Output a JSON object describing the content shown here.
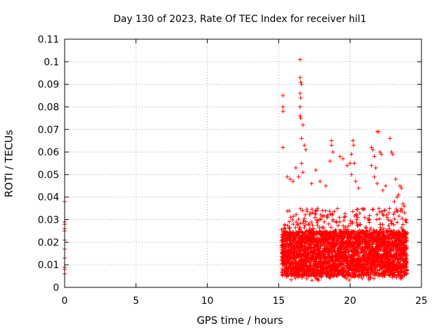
{
  "chart_data": {
    "type": "scatter",
    "title": "Day 130 of 2023, Rate Of TEC Index for receiver hil1",
    "xlabel": "GPS time / hours",
    "ylabel": "ROTI / TECUs",
    "xlim": [
      0,
      25
    ],
    "ylim": [
      0,
      0.11
    ],
    "x_ticks": [
      "0",
      "5",
      "10",
      "15",
      "20",
      "25"
    ],
    "y_ticks": [
      "0",
      "0.01",
      "0.02",
      "0.03",
      "0.04",
      "0.05",
      "0.06",
      "0.07",
      "0.08",
      "0.09",
      "0.1",
      "0.11"
    ],
    "grid": true,
    "marker": "+",
    "color": "#ff0000",
    "series": [
      {
        "points": [
          [
            0.0,
            0.038
          ],
          [
            0.0,
            0.029
          ],
          [
            0.0,
            0.028
          ],
          [
            0.0,
            0.026
          ],
          [
            0.0,
            0.025
          ],
          [
            0.0,
            0.021
          ],
          [
            0.0,
            0.017
          ],
          [
            0.0,
            0.013
          ],
          [
            0.0,
            0.009
          ],
          [
            0.0,
            0.008
          ],
          [
            0.0,
            0.006
          ],
          [
            15.3,
            0.085
          ],
          [
            15.3,
            0.08
          ],
          [
            15.3,
            0.078
          ],
          [
            15.3,
            0.062
          ],
          [
            15.6,
            0.049
          ],
          [
            15.8,
            0.048
          ],
          [
            16.0,
            0.047
          ],
          [
            16.2,
            0.053
          ],
          [
            16.4,
            0.049
          ],
          [
            16.5,
            0.101
          ],
          [
            16.5,
            0.093
          ],
          [
            16.55,
            0.091
          ],
          [
            16.6,
            0.09
          ],
          [
            16.5,
            0.086
          ],
          [
            16.55,
            0.084
          ],
          [
            16.5,
            0.08
          ],
          [
            16.5,
            0.076
          ],
          [
            16.55,
            0.075
          ],
          [
            16.7,
            0.072
          ],
          [
            16.6,
            0.066
          ],
          [
            16.8,
            0.063
          ],
          [
            16.9,
            0.061
          ],
          [
            16.6,
            0.055
          ],
          [
            16.7,
            0.051
          ],
          [
            17.3,
            0.046
          ],
          [
            17.6,
            0.052
          ],
          [
            17.9,
            0.047
          ],
          [
            18.3,
            0.045
          ],
          [
            18.6,
            0.056
          ],
          [
            18.7,
            0.065
          ],
          [
            18.7,
            0.063
          ],
          [
            18.8,
            0.06
          ],
          [
            19.3,
            0.058
          ],
          [
            19.5,
            0.057
          ],
          [
            19.8,
            0.054
          ],
          [
            20.0,
            0.055
          ],
          [
            20.2,
            0.065
          ],
          [
            20.25,
            0.063
          ],
          [
            20.1,
            0.059
          ],
          [
            20.3,
            0.055
          ],
          [
            20.1,
            0.05
          ],
          [
            20.4,
            0.047
          ],
          [
            20.6,
            0.044
          ],
          [
            21.5,
            0.062
          ],
          [
            21.6,
            0.061
          ],
          [
            21.7,
            0.058
          ],
          [
            21.5,
            0.054
          ],
          [
            21.8,
            0.053
          ],
          [
            21.9,
            0.069
          ],
          [
            22.0,
            0.069
          ],
          [
            22.1,
            0.06
          ],
          [
            22.2,
            0.059
          ],
          [
            21.7,
            0.049
          ],
          [
            21.9,
            0.046
          ],
          [
            22.3,
            0.043
          ],
          [
            22.5,
            0.045
          ],
          [
            22.8,
            0.066
          ],
          [
            22.9,
            0.06
          ],
          [
            23.0,
            0.059
          ],
          [
            23.2,
            0.048
          ],
          [
            23.5,
            0.045
          ],
          [
            23.6,
            0.044
          ],
          [
            23.4,
            0.041
          ],
          [
            23.1,
            0.038
          ],
          [
            23.3,
            0.04
          ],
          [
            23.7,
            0.037
          ],
          [
            23.8,
            0.036
          ]
        ],
        "band": {
          "x_range": [
            15.2,
            24.0
          ],
          "y_min": 0.003,
          "y_max": 0.035,
          "y_typical": [
            0.005,
            0.025
          ]
        }
      }
    ]
  }
}
